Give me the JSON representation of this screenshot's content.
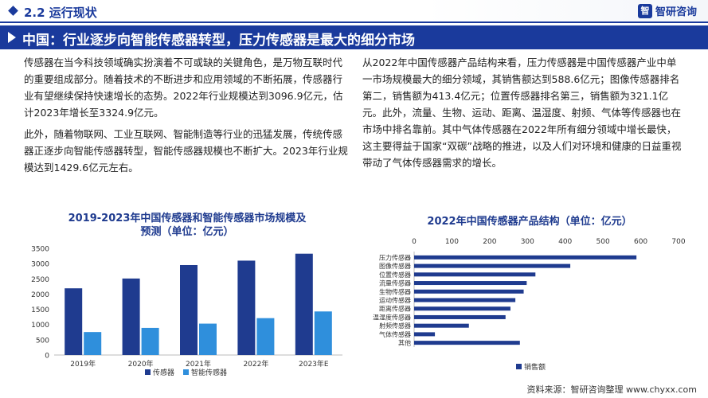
{
  "header": {
    "section_title": "2.2 运行现状",
    "brand_name": "智研咨询",
    "brand_logo_char": "智"
  },
  "headline": "中国：行业逐步向智能传感器转型，压力传感器是最大的细分市场",
  "left_text": {
    "p1": "传感器在当今科技领域确实扮演着不可或缺的关键角色，是万物互联时代的重要组成部分。随着技术的不断进步和应用领域的不断拓展，传感器行业有望继续保持快速增长的态势。2022年行业规模达到3096.9亿元，估计2023年增长至3324.9亿元。",
    "p2": "此外，随着物联网、工业互联网、智能制造等行业的迅猛发展，传统传感器正逐步向智能传感器转型，智能传感器规模也不断扩大。2023年行业规模达到1429.6亿元左右。"
  },
  "right_text": {
    "p1": "从2022年中国传感器产品结构来看，压力传感器是中国传感器产业中单一市场规模最大的细分领域，其销售额达到588.6亿元；图像传感器排名第二，销售额为413.4亿元；位置传感器排名第三，销售额为321.1亿元。此外，流量、生物、运动、距离、温湿度、射频、气体等传感器也在市场中排名靠前。其中气体传感器在2022年所有细分领域中增长最快，这主要得益于国家“双碳”战略的推进，以及人们对环境和健康的日益重视带动了气体传感器需求的增长。"
  },
  "chart_data": [
    {
      "type": "bar",
      "title": "2019-2023年中国传感器和智能传感器市场规模及预测（单位：亿元）",
      "title_line1": "2019-2023年中国传感器和智能传感器市场规模及",
      "title_line2": "预测（单位：亿元）",
      "categories": [
        "2019年",
        "2020年",
        "2021年",
        "2022年",
        "2023年E"
      ],
      "series": [
        {
          "name": "传感器",
          "values": [
            2188.8,
            2510.3,
            2951.8,
            3096.9,
            3324.9
          ],
          "color": "#1f3b8f"
        },
        {
          "name": "智能传感器",
          "values": [
            753.6,
            890.0,
            1030.0,
            1210.0,
            1429.6
          ],
          "color": "#2f8fdc"
        }
      ],
      "ylim": [
        0,
        3500
      ],
      "yticks": [
        0,
        500,
        1000,
        1500,
        2000,
        2500,
        3000,
        3500
      ],
      "legend_position": "bottom",
      "grid": false
    },
    {
      "type": "bar",
      "orientation": "horizontal",
      "title": "2022年中国传感器产品结构（单位：亿元）",
      "categories": [
        "压力传感器",
        "图像传感器",
        "位置传感器",
        "流量传感器",
        "生物传感器",
        "运动传感器",
        "距离传感器",
        "温湿度传感器",
        "射频传感器",
        "气体传感器",
        "其他"
      ],
      "series": [
        {
          "name": "销售额",
          "values": [
            588.6,
            413.4,
            321.1,
            298.0,
            290.0,
            268.0,
            255.0,
            242.0,
            145.0,
            55.0,
            280.0
          ],
          "color": "#1f3b8f"
        }
      ],
      "xlim": [
        0,
        700
      ],
      "xticks": [
        0,
        100,
        200,
        300,
        400,
        500,
        600,
        700
      ],
      "legend_position": "bottom",
      "grid": false
    }
  ],
  "footer": {
    "source": "资料来源：智研咨询整理  www.chyxx.com"
  }
}
